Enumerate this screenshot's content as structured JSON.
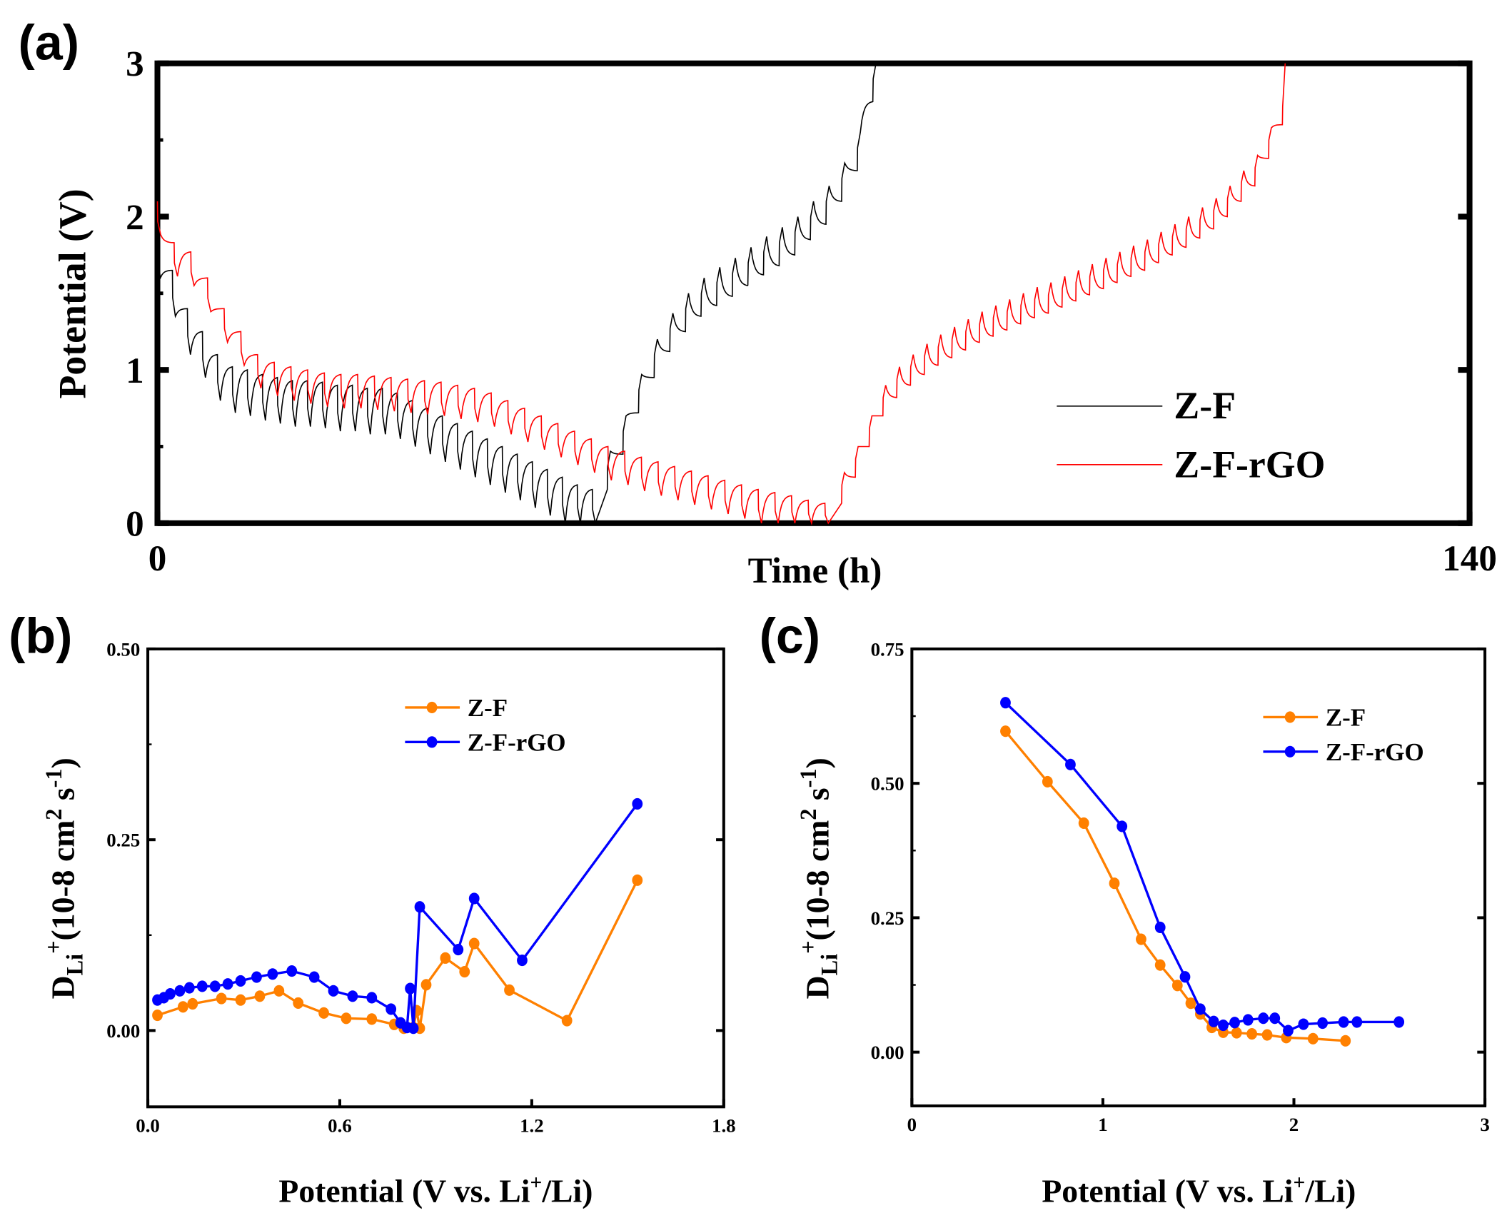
{
  "chart_data": [
    {
      "panel": "(a)",
      "type": "line",
      "xlabel": "Time (h)",
      "ylabel": "Potential (V)",
      "xlim": [
        0,
        140
      ],
      "ylim": [
        0,
        3
      ],
      "xticks": [
        "0",
        "140"
      ],
      "yticks": [
        "0",
        "1",
        "2",
        "3"
      ],
      "legend_position": "bottom-right",
      "series": [
        {
          "name": "Z-F",
          "color": "#000000",
          "discharge": {
            "t_start": 0,
            "t_end": 48,
            "pulse_drop": 0.3,
            "relaxed": [
              1.9,
              1.65,
              1.4,
              1.25,
              1.1,
              1.02,
              1.0,
              0.97,
              0.95,
              0.93,
              0.93,
              0.92,
              0.9,
              0.9,
              0.88,
              0.88,
              0.85,
              0.8,
              0.75,
              0.7,
              0.65,
              0.6,
              0.55,
              0.5,
              0.45,
              0.4,
              0.35,
              0.3,
              0.25,
              0.22
            ]
          },
          "charge": {
            "t_start": 48,
            "t_end": 78,
            "pulse_rise": 0.25,
            "relaxed": [
              0.22,
              0.45,
              0.72,
              0.95,
              1.12,
              1.25,
              1.35,
              1.42,
              1.48,
              1.55,
              1.62,
              1.68,
              1.75,
              1.85,
              1.95,
              2.1,
              2.3,
              2.75
            ]
          }
        },
        {
          "name": "Z-F-rGO",
          "color": "#ff0000",
          "discharge": {
            "t_start": 0,
            "t_end": 73,
            "pulse_drop": 0.22,
            "relaxed": [
              2.1,
              1.83,
              1.77,
              1.6,
              1.4,
              1.25,
              1.1,
              1.05,
              1.02,
              1.0,
              0.98,
              0.97,
              0.97,
              0.96,
              0.95,
              0.94,
              0.93,
              0.92,
              0.9,
              0.88,
              0.85,
              0.8,
              0.75,
              0.7,
              0.65,
              0.6,
              0.55,
              0.5,
              0.47,
              0.43,
              0.4,
              0.37,
              0.34,
              0.31,
              0.28,
              0.25,
              0.22,
              0.2,
              0.18,
              0.15,
              0.13
            ]
          },
          "charge": {
            "t_start": 73,
            "t_end": 121.5,
            "pulse_rise": 0.2,
            "relaxed": [
              0.13,
              0.3,
              0.5,
              0.7,
              0.82,
              0.9,
              0.97,
              1.03,
              1.08,
              1.13,
              1.18,
              1.22,
              1.26,
              1.3,
              1.34,
              1.37,
              1.41,
              1.45,
              1.49,
              1.53,
              1.57,
              1.61,
              1.65,
              1.7,
              1.75,
              1.8,
              1.86,
              1.92,
              2.0,
              2.1,
              2.2,
              2.38,
              2.6
            ]
          }
        }
      ]
    },
    {
      "panel": "(b)",
      "type": "line",
      "xlabel": "Potential (V vs. Li+/Li)",
      "ylabel": "DLi+(10-8 cm2 s-1)",
      "xlim": [
        0,
        1.8
      ],
      "ylim": [
        -0.1,
        0.5
      ],
      "xticks": [
        "0.0",
        "0.6",
        "1.2",
        "1.8"
      ],
      "yticks": [
        "0.00",
        "0.25",
        "0.50"
      ],
      "legend_position": "top-center",
      "series": [
        {
          "name": "Z-F",
          "color": "#ff8000",
          "x": [
            0.03,
            0.11,
            0.14,
            0.23,
            0.29,
            0.35,
            0.41,
            0.47,
            0.55,
            0.62,
            0.7,
            0.77,
            0.8,
            0.83,
            0.84,
            0.85,
            0.87,
            0.93,
            0.99,
            1.02,
            1.13,
            1.31,
            1.53
          ],
          "y": [
            0.02,
            0.031,
            0.035,
            0.042,
            0.04,
            0.045,
            0.052,
            0.036,
            0.023,
            0.016,
            0.015,
            0.008,
            0.003,
            0.004,
            0.026,
            0.003,
            0.06,
            0.095,
            0.077,
            0.114,
            0.053,
            0.013,
            0.197
          ]
        },
        {
          "name": "Z-F-rGO",
          "color": "#0000ff",
          "x": [
            0.03,
            0.05,
            0.07,
            0.1,
            0.13,
            0.17,
            0.21,
            0.25,
            0.29,
            0.34,
            0.39,
            0.45,
            0.52,
            0.58,
            0.64,
            0.7,
            0.76,
            0.79,
            0.81,
            0.82,
            0.83,
            0.85,
            0.97,
            1.02,
            1.17,
            1.53
          ],
          "y": [
            0.04,
            0.043,
            0.048,
            0.052,
            0.056,
            0.058,
            0.058,
            0.061,
            0.065,
            0.07,
            0.074,
            0.078,
            0.07,
            0.052,
            0.045,
            0.043,
            0.028,
            0.01,
            0.004,
            0.055,
            0.003,
            0.162,
            0.106,
            0.173,
            0.092,
            0.297
          ]
        }
      ]
    },
    {
      "panel": "(c)",
      "type": "line",
      "xlabel": "Potential (V vs. Li+/Li)",
      "ylabel": "DLi+(10-8 cm2 s-1)",
      "xlim": [
        0,
        3
      ],
      "ylim": [
        -0.1,
        0.75
      ],
      "xticks": [
        "0",
        "1",
        "2",
        "3"
      ],
      "yticks": [
        "0.00",
        "0.25",
        "0.50",
        "0.75"
      ],
      "legend_position": "top-right",
      "series": [
        {
          "name": "Z-F",
          "color": "#ff8000",
          "x": [
            0.49,
            0.71,
            0.9,
            1.06,
            1.2,
            1.3,
            1.39,
            1.46,
            1.51,
            1.57,
            1.63,
            1.7,
            1.78,
            1.86,
            1.96,
            2.1,
            2.27
          ],
          "y": [
            0.597,
            0.503,
            0.426,
            0.314,
            0.21,
            0.162,
            0.124,
            0.091,
            0.071,
            0.046,
            0.037,
            0.036,
            0.034,
            0.032,
            0.027,
            0.025,
            0.021
          ]
        },
        {
          "name": "Z-F-rGO",
          "color": "#0000ff",
          "x": [
            0.49,
            0.83,
            1.1,
            1.3,
            1.43,
            1.51,
            1.58,
            1.63,
            1.69,
            1.76,
            1.84,
            1.9,
            1.97,
            2.05,
            2.15,
            2.26,
            2.33,
            2.55
          ],
          "y": [
            0.65,
            0.535,
            0.42,
            0.232,
            0.14,
            0.08,
            0.057,
            0.05,
            0.055,
            0.06,
            0.063,
            0.063,
            0.04,
            0.052,
            0.054,
            0.056,
            0.056,
            0.056
          ]
        }
      ]
    }
  ],
  "labels": {
    "a": "(a)",
    "b": "(b)",
    "c": "(c)",
    "a_x": "Time (h)",
    "a_y": "Potential (V)",
    "pot_main": "Potential (V vs. Li",
    "pot_sup": "+",
    "pot_end": "/Li)",
    "d_main": "D",
    "d_sub": "Li",
    "d_sup": "+",
    "d_mid": "(10-8 cm",
    "d_two": "2",
    "d_s": " s",
    "d_neg": "-1",
    "d_close": ")"
  }
}
